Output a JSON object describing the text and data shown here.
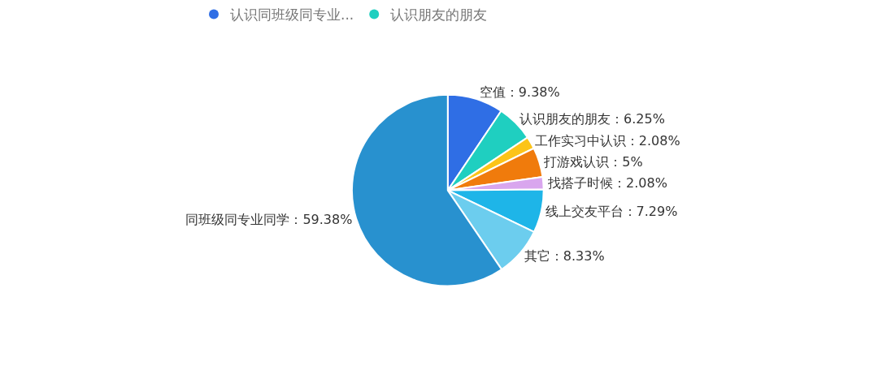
{
  "chart_data": {
    "type": "pie",
    "categories": [
      "空值",
      "认识朋友的朋友",
      "工作实习中认识",
      "打游戏认识",
      "找搭子时候",
      "线上交友平台",
      "其它",
      "同班级同专业同学"
    ],
    "values": [
      9.38,
      6.25,
      2.08,
      5,
      2.08,
      7.29,
      8.33,
      59.38
    ],
    "value_labels": [
      "：9.38%",
      "：6.25%",
      "：2.08%",
      "：5%",
      "：2.08%",
      "：7.29%",
      "：8.33%",
      "：59.38%"
    ],
    "colors": [
      "#2f6ee5",
      "#1fcfc0",
      "#fcc419",
      "#f07b0c",
      "#d9a6ee",
      "#1eb5e8",
      "#6ccdee",
      "#2891cf"
    ],
    "annotations": [
      "认识同班级同专业...",
      "认识朋友的朋友"
    ]
  }
}
